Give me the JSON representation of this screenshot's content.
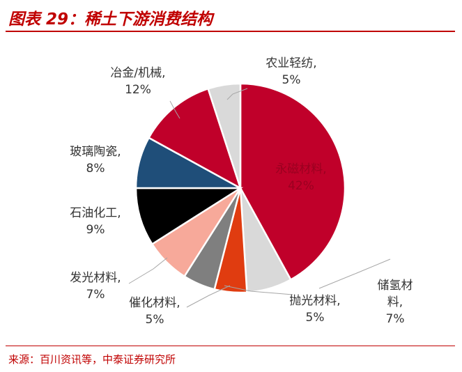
{
  "header": {
    "title": "图表 29：稀土下游消费结构"
  },
  "source": {
    "text": "来源：百川资讯等，中泰证券研究所"
  },
  "chart_data": {
    "type": "pie",
    "title": "",
    "slices": [
      {
        "name": "永磁材料",
        "value": 42,
        "value_label": "42%",
        "color": "#c0002a"
      },
      {
        "name": "储氢材料",
        "value": 7,
        "value_label": "7%",
        "color": "#d9d9d9"
      },
      {
        "name": "抛光材料",
        "value": 5,
        "value_label": "5%",
        "color": "#e03c10"
      },
      {
        "name": "催化材料",
        "value": 5,
        "value_label": "5%",
        "color": "#7f7f7f"
      },
      {
        "name": "发光材料",
        "value": 7,
        "value_label": "7%",
        "color": "#f7a99a"
      },
      {
        "name": "石油化工",
        "value": 9,
        "value_label": "9%",
        "color": "#000000"
      },
      {
        "name": "玻璃陶瓷",
        "value": 8,
        "value_label": "8%",
        "color": "#1f4e79"
      },
      {
        "name": "冶金/机械",
        "value": 12,
        "value_label": "12%",
        "color": "#c0002a"
      },
      {
        "name": "农业轻纺",
        "value": 5,
        "value_label": "5%",
        "color": "#d9d9d9"
      }
    ],
    "label_display": [
      {
        "line1": "永磁材料,",
        "line2": "42%"
      },
      {
        "line1": "储氢材",
        "line2": "料,",
        "line3": "7%"
      },
      {
        "line1": "抛光材料,",
        "line2": "5%"
      },
      {
        "line1": "催化材料,",
        "line2": "5%"
      },
      {
        "line1": "发光材料,",
        "line2": "7%"
      },
      {
        "line1": "石油化工,",
        "line2": "9%"
      },
      {
        "line1": "玻璃陶瓷,",
        "line2": "8%"
      },
      {
        "line1": "冶金/机械,",
        "line2": "12%"
      },
      {
        "line1": "农业轻纺,",
        "line2": "5%"
      }
    ]
  }
}
